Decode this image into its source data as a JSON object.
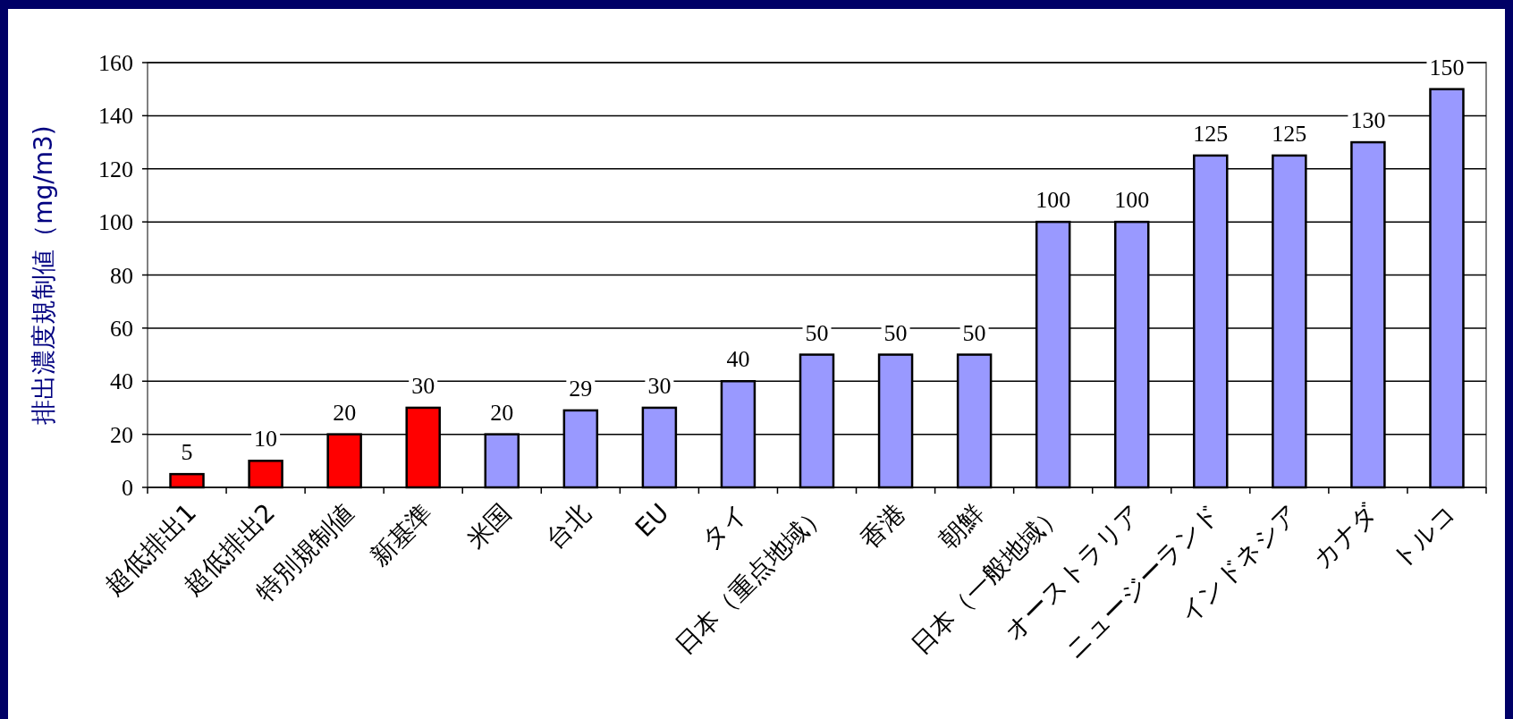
{
  "chart_data": {
    "type": "bar",
    "ylabel": "排出濃度規制値（mg/m3)",
    "categories": [
      "超低排出1",
      "超低排出2",
      "特別規制値",
      "新基準",
      "米国",
      "台北",
      "EU",
      "タイ",
      "日本（重点地域）",
      "香港",
      "朝鮮",
      "日本（一般地域）",
      "オーストラリア",
      "ニュージーランド",
      "インドネシア",
      "カナダ",
      "トルコ"
    ],
    "values": [
      5,
      10,
      20,
      30,
      20,
      29,
      30,
      40,
      50,
      50,
      50,
      100,
      100,
      125,
      125,
      130,
      150
    ],
    "colors": [
      "#ff0000",
      "#ff0000",
      "#ff0000",
      "#ff0000",
      "#9999ff",
      "#9999ff",
      "#9999ff",
      "#9999ff",
      "#9999ff",
      "#9999ff",
      "#9999ff",
      "#9999ff",
      "#9999ff",
      "#9999ff",
      "#9999ff",
      "#9999ff",
      "#9999ff"
    ],
    "ylim": [
      0,
      160
    ],
    "yticks": [
      0,
      20,
      40,
      60,
      80,
      100,
      120,
      140,
      160
    ],
    "grid": "y",
    "data_labels": true
  }
}
